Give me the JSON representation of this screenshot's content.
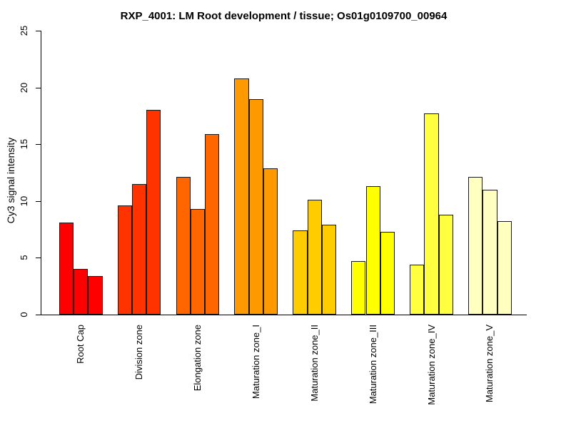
{
  "chart_data": {
    "type": "bar",
    "title": "RXP_4001: LM Root development / tissue; Os01g0109700_00964",
    "xlabel": "",
    "ylabel": "Cy3 signal intensity",
    "ylim": [
      0,
      25
    ],
    "yticks": [
      0,
      5,
      10,
      15,
      20,
      25
    ],
    "grid": false,
    "legend": false,
    "bars_per_group": 3,
    "categories": [
      "Root Cap",
      "Division zone",
      "Elongation zone",
      "Maturation zone_I",
      "Maturation zone_II",
      "Maturation zone_III",
      "Maturation zone_IV",
      "Maturation zone_V"
    ],
    "groups": [
      {
        "label": "Root Cap",
        "color": "#FF0000",
        "values": [
          8.1,
          4.0,
          3.4
        ]
      },
      {
        "label": "Division zone",
        "color": "#FF3300",
        "values": [
          9.6,
          11.5,
          18.0
        ]
      },
      {
        "label": "Elongation zone",
        "color": "#FF6600",
        "values": [
          12.1,
          9.3,
          15.9
        ]
      },
      {
        "label": "Maturation zone_I",
        "color": "#FF9900",
        "values": [
          20.8,
          19.0,
          12.9
        ]
      },
      {
        "label": "Maturation zone_II",
        "color": "#FFCC00",
        "values": [
          7.4,
          10.1,
          7.9
        ]
      },
      {
        "label": "Maturation zone_III",
        "color": "#FFFF00",
        "values": [
          4.7,
          11.3,
          7.3
        ]
      },
      {
        "label": "Maturation zone_IV",
        "color": "#FFFF40",
        "values": [
          4.4,
          17.7,
          8.8
        ]
      },
      {
        "label": "Maturation zone_V",
        "color": "#FFFFBF",
        "values": [
          12.1,
          11.0,
          8.2
        ]
      }
    ],
    "axis_color": "#000000",
    "bar_border_color": "#1a1a1a",
    "background": "#FFFFFF"
  }
}
